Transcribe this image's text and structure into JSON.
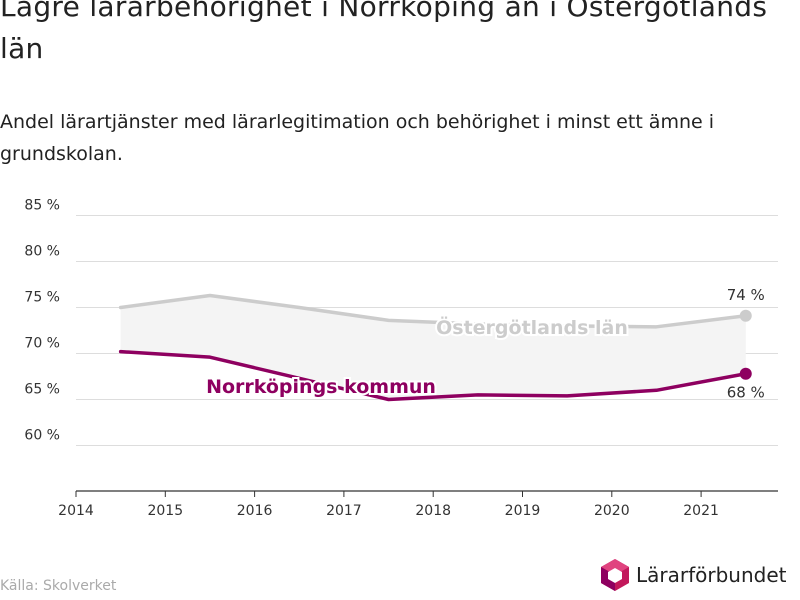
{
  "title": "Lägre lärarbehörighet i Norrköping än i Östergötlands län",
  "subtitle": "Andel lärartjänster med lärarlegitimation och behörighet i minst ett ämne i grundskolan.",
  "source": "Källa: Skolverket",
  "logo_text": "Lärarförbundet",
  "colors": {
    "lan": "#cccccc",
    "kommun": "#8e0060",
    "band": "#f4f4f4",
    "grid": "#dddddd",
    "axis": "#333333"
  },
  "chart_data": {
    "type": "line",
    "title": "Lägre lärarbehörighet i Norrköping än i Östergötlands län",
    "subtitle": "Andel lärartjänster med lärarlegitimation och behörighet i minst ett ämne i grundskolan.",
    "xlabel": "",
    "ylabel": "",
    "x_ticks": [
      "2014",
      "2015",
      "2016",
      "2017",
      "2018",
      "2019",
      "2020",
      "2021"
    ],
    "y_ticks": [
      "60 %",
      "65 %",
      "70 %",
      "75 %",
      "80 %",
      "85 %"
    ],
    "ylim": [
      55,
      85
    ],
    "grid": true,
    "x": [
      2014.5,
      2015.5,
      2016.5,
      2017.5,
      2018.5,
      2019.5,
      2020.5,
      2021.5
    ],
    "series": [
      {
        "name": "Östergötlands län",
        "color": "#cccccc",
        "values": [
          75.0,
          76.3,
          75.0,
          73.6,
          73.2,
          73.0,
          72.9,
          74.1
        ],
        "end_label": "74 %"
      },
      {
        "name": "Norrköpings kommun",
        "color": "#8e0060",
        "values": [
          70.2,
          69.6,
          67.3,
          65.0,
          65.5,
          65.4,
          66.0,
          67.8
        ],
        "end_label": "68 %"
      }
    ]
  }
}
